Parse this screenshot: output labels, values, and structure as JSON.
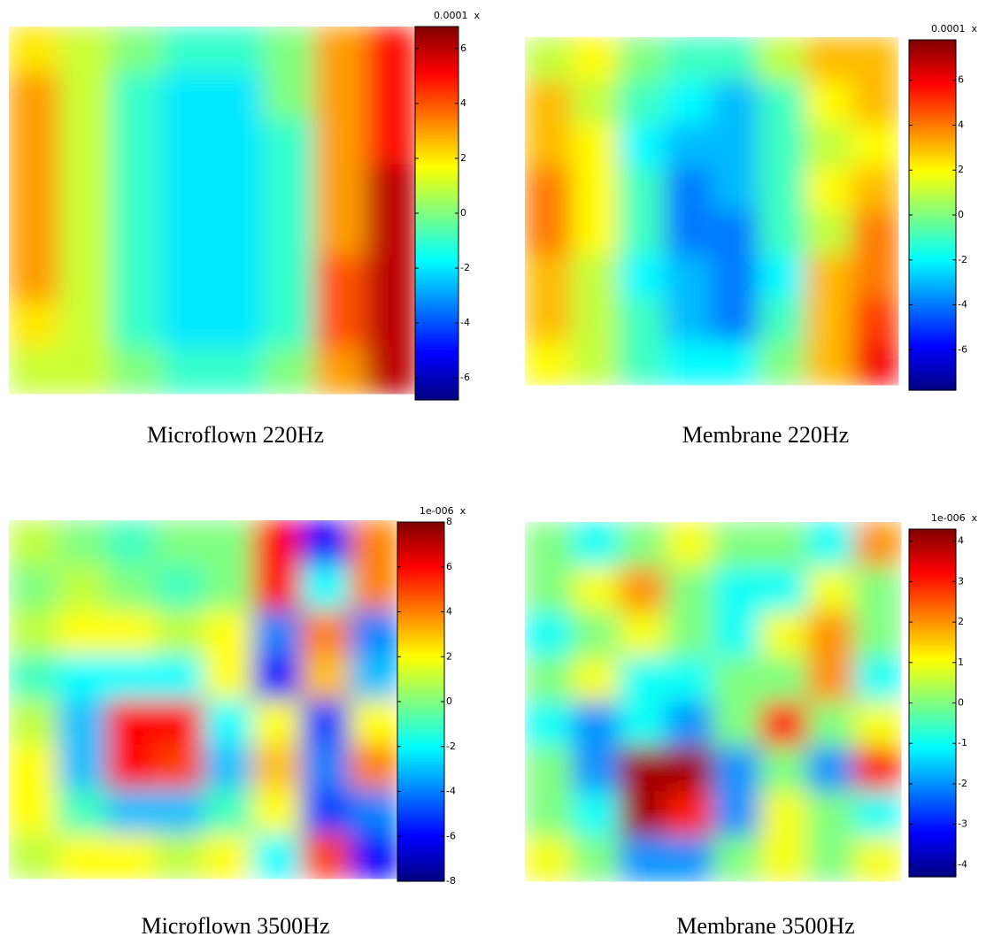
{
  "chart_data": [
    {
      "type": "heatmap",
      "title": "Microflown 220Hz",
      "scale_label": "0.0001  x",
      "clim": [
        -6.8,
        6.8
      ],
      "cticks": [
        -6,
        -4,
        -2,
        0,
        2,
        4,
        6
      ],
      "z": [
        [
          2,
          1,
          0,
          -1,
          -1,
          0,
          3,
          5
        ],
        [
          3,
          1,
          -1,
          -2,
          -2,
          0,
          3,
          5
        ],
        [
          3,
          1,
          -1,
          -2,
          -2,
          -1,
          3,
          5
        ],
        [
          3,
          1,
          -1,
          -2,
          -2,
          -1,
          3,
          6
        ],
        [
          3,
          1,
          -1,
          -2,
          -2,
          -1,
          3,
          6
        ],
        [
          3,
          1,
          -1,
          -2,
          -2,
          -1,
          4,
          6
        ],
        [
          2,
          1,
          -1,
          -2,
          -2,
          -1,
          4,
          6
        ],
        [
          1,
          1,
          0,
          -1,
          -1,
          0,
          3,
          6
        ]
      ]
    },
    {
      "type": "heatmap",
      "title": "Membrane 220Hz",
      "scale_label": "0.0001  x",
      "clim": [
        -7.8,
        7.8
      ],
      "cticks": [
        -6,
        -4,
        -2,
        0,
        2,
        4,
        6
      ],
      "z": [
        [
          1,
          2,
          0,
          -1,
          -1,
          1,
          3,
          3
        ],
        [
          3,
          1,
          -1,
          -2,
          -3,
          -1,
          2,
          3
        ],
        [
          3,
          2,
          -2,
          -3,
          -3,
          -1,
          1,
          2
        ],
        [
          4,
          2,
          -1,
          -4,
          -3,
          -1,
          2,
          3
        ],
        [
          4,
          2,
          -1,
          -4,
          -4,
          -1,
          1,
          4
        ],
        [
          3,
          1,
          -2,
          -3,
          -4,
          -2,
          3,
          4
        ],
        [
          3,
          1,
          -1,
          -3,
          -4,
          -1,
          3,
          5
        ],
        [
          2,
          1,
          -1,
          -2,
          -2,
          0,
          3,
          6
        ]
      ]
    },
    {
      "type": "heatmap",
      "title": "Microflown 3500Hz",
      "scale_label": "1e-006  x",
      "clim": [
        -8,
        8
      ],
      "cticks": [
        -8,
        -6,
        -4,
        -2,
        0,
        2,
        4,
        6,
        8
      ],
      "z": [
        [
          1,
          0,
          -1,
          0,
          0,
          6,
          -6,
          4
        ],
        [
          0,
          1,
          0,
          -1,
          0,
          6,
          -2,
          4
        ],
        [
          1,
          2,
          2,
          1,
          2,
          -4,
          4,
          -4
        ],
        [
          -1,
          -2,
          -2,
          -2,
          2,
          -6,
          3,
          -3
        ],
        [
          1,
          -3,
          6,
          6,
          -2,
          2,
          -5,
          2
        ],
        [
          2,
          -3,
          6,
          5,
          -3,
          3,
          -4,
          4
        ],
        [
          2,
          -1,
          -3,
          -3,
          -1,
          2,
          -5,
          -4
        ],
        [
          1,
          2,
          2,
          1,
          2,
          -2,
          5,
          -6
        ]
      ]
    },
    {
      "type": "heatmap",
      "title": "Membrane 3500Hz",
      "scale_label": "1e-006  x",
      "clim": [
        -4.3,
        4.3
      ],
      "cticks": [
        -4,
        -3,
        -2,
        -1,
        0,
        1,
        2,
        3,
        4
      ],
      "z": [
        [
          0,
          -1,
          0,
          1,
          0,
          0,
          -1,
          2
        ],
        [
          0,
          1,
          2,
          0,
          -1,
          -1,
          1,
          0
        ],
        [
          -1,
          0,
          1,
          0,
          -1,
          1,
          2,
          0
        ],
        [
          0,
          1,
          -1,
          -1,
          0,
          0,
          2,
          -1
        ],
        [
          -1,
          -2,
          -1,
          -2,
          0,
          3,
          0,
          1
        ],
        [
          0,
          -2,
          4,
          4,
          -2,
          0,
          -2,
          3
        ],
        [
          0,
          -1,
          4,
          3,
          -2,
          1,
          0,
          -1
        ],
        [
          1,
          0,
          -2,
          -2,
          0,
          1,
          0,
          1
        ]
      ]
    }
  ]
}
